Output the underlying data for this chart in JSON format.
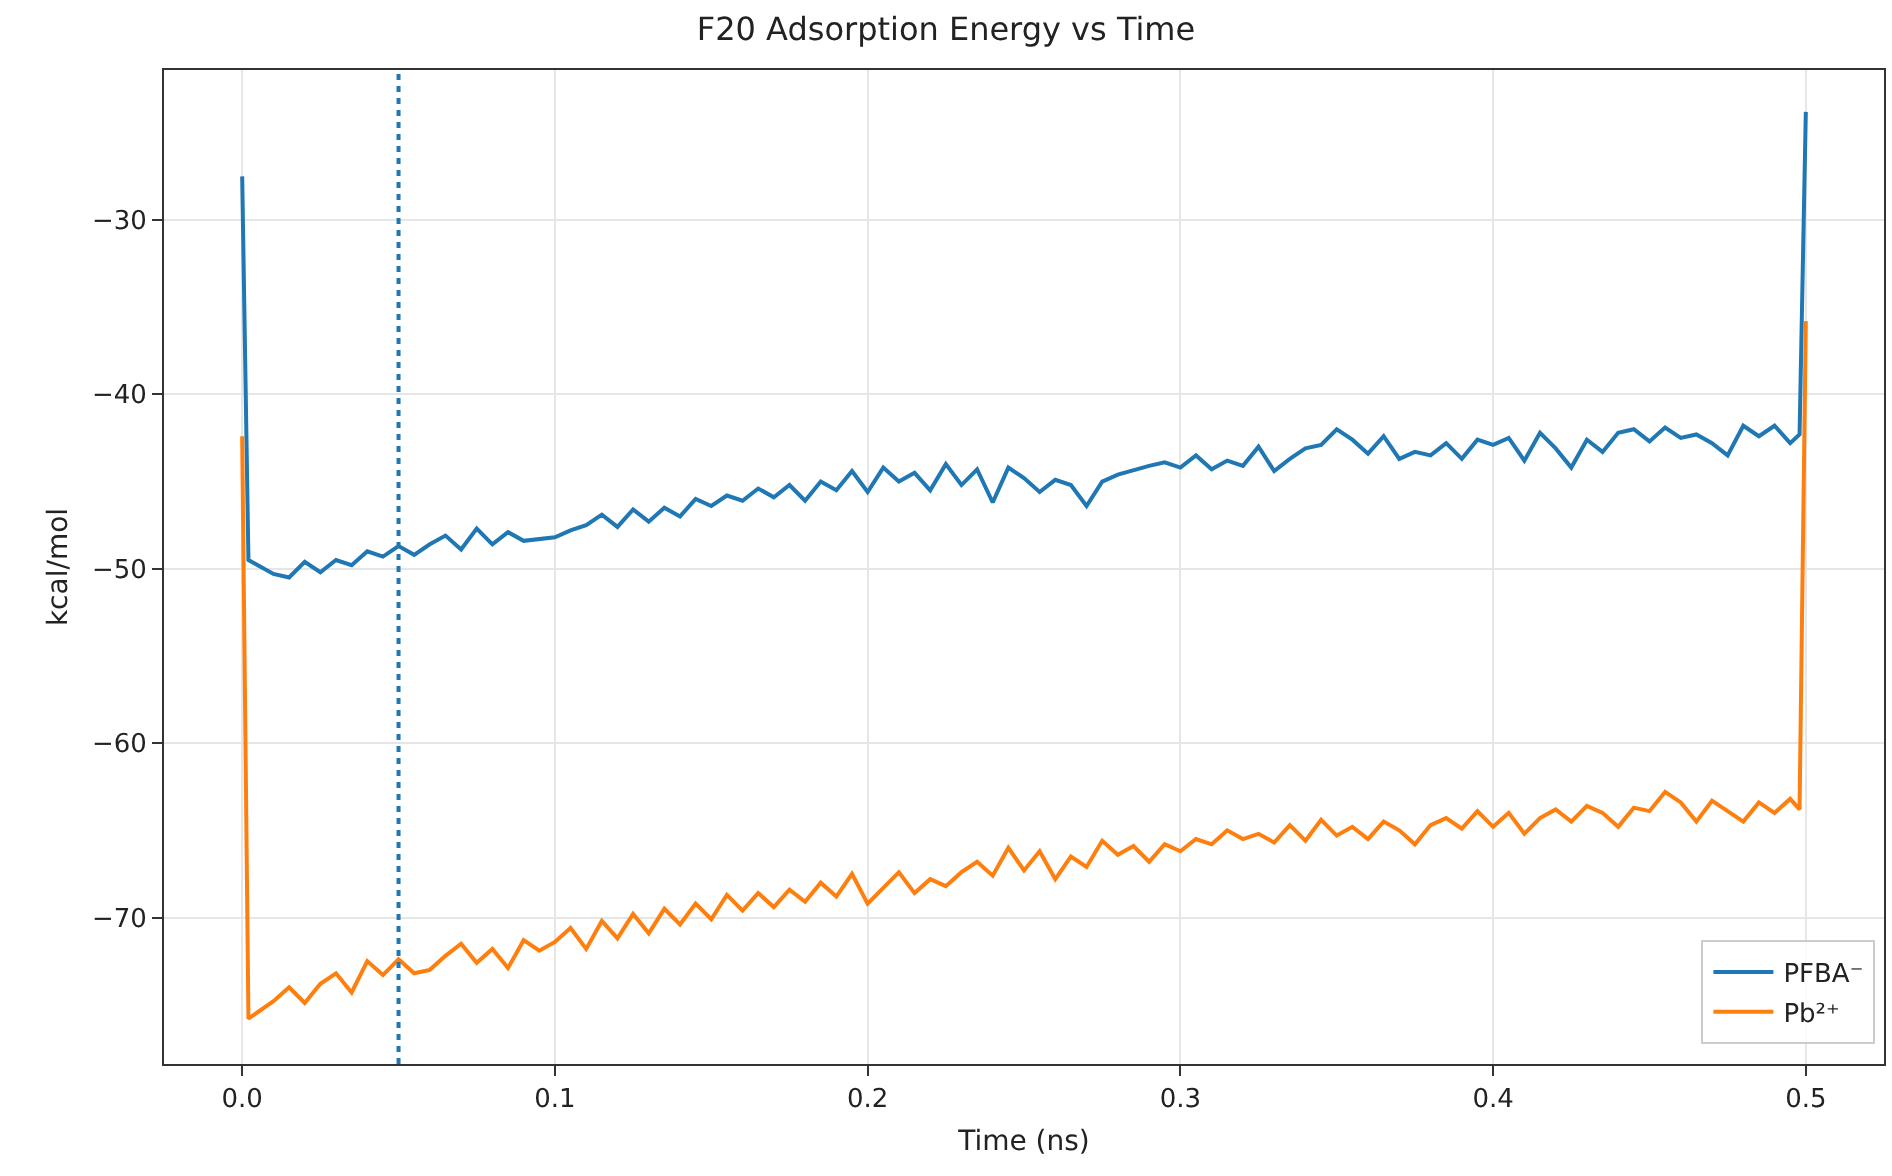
{
  "chart_data": {
    "type": "line",
    "title": "F20 Adsorption Energy vs Time",
    "xlabel": "Time (ns)",
    "ylabel": "kcal/mol",
    "xlim": [
      -0.025,
      0.525
    ],
    "ylim": [
      -78.4,
      -21.4
    ],
    "xticks": [
      {
        "value": 0,
        "label": "0.0"
      },
      {
        "value": 0.1,
        "label": "0.1"
      },
      {
        "value": 0.2,
        "label": "0.2"
      },
      {
        "value": 0.3,
        "label": "0.3"
      },
      {
        "value": 0.4,
        "label": "0.4"
      },
      {
        "value": 0.5,
        "label": "0.5"
      }
    ],
    "yticks": [
      {
        "value": -70,
        "label": "−70"
      },
      {
        "value": -60,
        "label": "−60"
      },
      {
        "value": -50,
        "label": "−50"
      },
      {
        "value": -40,
        "label": "−40"
      },
      {
        "value": -30,
        "label": "−30"
      }
    ],
    "grid": true,
    "legend": "bottom right",
    "line_style": "solid",
    "marker": "none",
    "ref_lines": [
      {
        "axis": "x",
        "value": 0.05,
        "color": "#1f77b4",
        "line_style": "dotted"
      }
    ],
    "series": [
      {
        "name": "PFBA⁻",
        "color": "#1f77b4",
        "x": [
          0,
          0.002,
          0.005,
          0.01,
          0.015,
          0.02,
          0.025,
          0.03,
          0.035,
          0.04,
          0.045,
          0.05,
          0.055,
          0.06,
          0.065,
          0.07,
          0.075,
          0.08,
          0.085,
          0.09,
          0.1,
          0.105,
          0.11,
          0.115,
          0.12,
          0.125,
          0.13,
          0.135,
          0.14,
          0.145,
          0.15,
          0.155,
          0.16,
          0.165,
          0.17,
          0.175,
          0.18,
          0.185,
          0.19,
          0.195,
          0.2,
          0.205,
          0.21,
          0.215,
          0.22,
          0.225,
          0.23,
          0.235,
          0.24,
          0.245,
          0.25,
          0.255,
          0.26,
          0.265,
          0.27,
          0.275,
          0.28,
          0.29,
          0.295,
          0.3,
          0.305,
          0.31,
          0.315,
          0.32,
          0.325,
          0.33,
          0.335,
          0.34,
          0.345,
          0.35,
          0.355,
          0.36,
          0.365,
          0.37,
          0.375,
          0.38,
          0.385,
          0.39,
          0.395,
          0.4,
          0.405,
          0.41,
          0.415,
          0.42,
          0.425,
          0.43,
          0.435,
          0.44,
          0.445,
          0.45,
          0.455,
          0.46,
          0.465,
          0.47,
          0.475,
          0.48,
          0.485,
          0.49,
          0.495,
          0.498,
          0.5
        ],
        "values": [
          -27.5,
          -49.5,
          -49.8,
          -50.3,
          -50.5,
          -49.6,
          -50.2,
          -49.5,
          -49.8,
          -49.0,
          -49.3,
          -48.7,
          -49.2,
          -48.6,
          -48.1,
          -48.9,
          -47.7,
          -48.6,
          -47.9,
          -48.4,
          -48.2,
          -47.8,
          -47.5,
          -46.9,
          -47.6,
          -46.6,
          -47.3,
          -46.5,
          -47.0,
          -46.0,
          -46.4,
          -45.8,
          -46.1,
          -45.4,
          -45.9,
          -45.2,
          -46.1,
          -45.0,
          -45.5,
          -44.4,
          -45.6,
          -44.2,
          -45.0,
          -44.5,
          -45.5,
          -44.0,
          -45.2,
          -44.3,
          -46.2,
          -44.2,
          -44.8,
          -45.6,
          -44.9,
          -45.2,
          -46.4,
          -45.0,
          -44.6,
          -44.1,
          -43.9,
          -44.2,
          -43.5,
          -44.3,
          -43.8,
          -44.1,
          -43.0,
          -44.4,
          -43.7,
          -43.1,
          -42.9,
          -42.0,
          -42.6,
          -43.4,
          -42.4,
          -43.7,
          -43.3,
          -43.5,
          -42.8,
          -43.7,
          -42.6,
          -42.9,
          -42.5,
          -43.8,
          -42.2,
          -43.1,
          -44.2,
          -42.6,
          -43.3,
          -42.2,
          -42.0,
          -42.7,
          -41.9,
          -42.5,
          -42.3,
          -42.8,
          -43.5,
          -41.8,
          -42.4,
          -41.8,
          -42.8,
          -42.3,
          -23.8
        ]
      },
      {
        "name": "Pb²⁺",
        "color": "#ff7f0e",
        "x": [
          0,
          0.002,
          0.01,
          0.015,
          0.02,
          0.025,
          0.03,
          0.035,
          0.04,
          0.045,
          0.05,
          0.055,
          0.06,
          0.065,
          0.07,
          0.075,
          0.08,
          0.085,
          0.09,
          0.095,
          0.1,
          0.105,
          0.11,
          0.115,
          0.12,
          0.125,
          0.13,
          0.135,
          0.14,
          0.145,
          0.15,
          0.155,
          0.16,
          0.165,
          0.17,
          0.175,
          0.18,
          0.185,
          0.19,
          0.195,
          0.2,
          0.205,
          0.21,
          0.215,
          0.22,
          0.225,
          0.23,
          0.235,
          0.24,
          0.245,
          0.25,
          0.255,
          0.26,
          0.265,
          0.27,
          0.275,
          0.28,
          0.285,
          0.29,
          0.295,
          0.3,
          0.305,
          0.31,
          0.315,
          0.32,
          0.325,
          0.33,
          0.335,
          0.34,
          0.345,
          0.35,
          0.355,
          0.36,
          0.365,
          0.37,
          0.375,
          0.38,
          0.385,
          0.39,
          0.395,
          0.4,
          0.405,
          0.41,
          0.415,
          0.42,
          0.425,
          0.43,
          0.435,
          0.44,
          0.445,
          0.45,
          0.455,
          0.46,
          0.465,
          0.47,
          0.475,
          0.48,
          0.485,
          0.49,
          0.495,
          0.498,
          0.5
        ],
        "values": [
          -42.4,
          -75.8,
          -74.8,
          -74.0,
          -74.9,
          -73.8,
          -73.2,
          -74.3,
          -72.5,
          -73.3,
          -72.4,
          -73.2,
          -73.0,
          -72.2,
          -71.5,
          -72.6,
          -71.8,
          -72.9,
          -71.3,
          -71.9,
          -71.4,
          -70.6,
          -71.8,
          -70.2,
          -71.2,
          -69.8,
          -70.9,
          -69.5,
          -70.4,
          -69.2,
          -70.1,
          -68.7,
          -69.6,
          -68.6,
          -69.4,
          -68.4,
          -69.1,
          -68.0,
          -68.8,
          -67.5,
          -69.2,
          -68.3,
          -67.4,
          -68.6,
          -67.8,
          -68.2,
          -67.4,
          -66.8,
          -67.6,
          -66.0,
          -67.3,
          -66.2,
          -67.8,
          -66.5,
          -67.1,
          -65.6,
          -66.4,
          -65.9,
          -66.8,
          -65.8,
          -66.2,
          -65.5,
          -65.8,
          -65.0,
          -65.5,
          -65.2,
          -65.7,
          -64.7,
          -65.6,
          -64.4,
          -65.3,
          -64.8,
          -65.5,
          -64.5,
          -65.0,
          -65.8,
          -64.7,
          -64.3,
          -64.9,
          -63.9,
          -64.8,
          -64.0,
          -65.2,
          -64.3,
          -63.8,
          -64.5,
          -63.6,
          -64.0,
          -64.8,
          -63.7,
          -63.9,
          -62.8,
          -63.4,
          -64.5,
          -63.3,
          -63.9,
          -64.5,
          -63.4,
          -64.0,
          -63.2,
          -63.8,
          -35.8
        ]
      }
    ]
  }
}
